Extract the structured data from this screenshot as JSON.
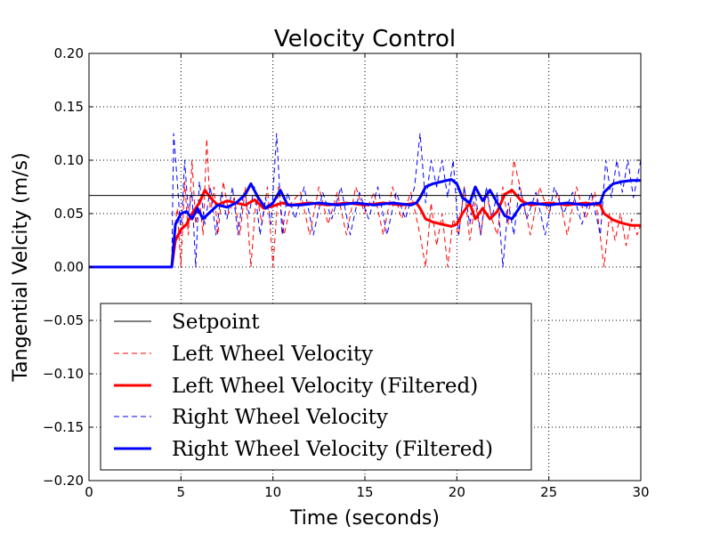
{
  "chart_data": {
    "type": "line",
    "title": "Velocity Control",
    "xlabel": "Time (seconds)",
    "ylabel": "Tangential Velcity (m/s)",
    "xlim": [
      0,
      30
    ],
    "ylim": [
      -0.2,
      0.2
    ],
    "grid": true,
    "legend_position": "lower-left",
    "x_ticks": [
      "0",
      "5",
      "10",
      "15",
      "20",
      "25",
      "30"
    ],
    "y_ticks": [
      "−0.20",
      "−0.15",
      "−0.10",
      "−0.05",
      "0.00",
      "0.05",
      "0.10",
      "0.15",
      "0.20"
    ],
    "series": [
      {
        "name": "Setpoint",
        "color": "#000000",
        "style": "solid-thin",
        "x": [
          0,
          30
        ],
        "y": [
          0.067,
          0.067
        ]
      },
      {
        "name": "Left Wheel Velocity",
        "color": "#ff0000",
        "style": "dashed-thin",
        "x": [
          0,
          4.5,
          4.6,
          4.8,
          5.0,
          5.2,
          5.4,
          5.6,
          5.8,
          6.0,
          6.2,
          6.4,
          6.6,
          6.8,
          7.0,
          7.3,
          7.6,
          7.9,
          8.2,
          8.5,
          8.8,
          9.1,
          9.4,
          9.7,
          10.0,
          10.3,
          10.6,
          11.0,
          11.5,
          12.0,
          12.5,
          13.0,
          13.5,
          14.0,
          14.5,
          15.0,
          15.5,
          16.0,
          16.5,
          17.0,
          17.5,
          18.0,
          18.3,
          18.6,
          18.9,
          19.2,
          19.5,
          19.8,
          20.1,
          20.4,
          20.7,
          21.0,
          21.3,
          21.6,
          21.9,
          22.2,
          22.5,
          22.8,
          23.1,
          23.5,
          24.0,
          24.5,
          25.0,
          25.5,
          26.0,
          26.5,
          27.0,
          27.5,
          28.0,
          28.3,
          28.6,
          28.9,
          29.2,
          29.5,
          29.8,
          30.0
        ],
        "y": [
          0,
          0,
          0.03,
          0.055,
          0.0,
          0.08,
          0.03,
          0.1,
          0.04,
          0.065,
          0.03,
          0.12,
          0.05,
          0.075,
          0.03,
          0.08,
          0.05,
          0.065,
          0.03,
          0.075,
          0.0,
          0.07,
          0.04,
          0.075,
          0.0,
          0.075,
          0.03,
          0.06,
          0.07,
          0.03,
          0.075,
          0.04,
          0.07,
          0.03,
          0.075,
          0.05,
          0.07,
          0.03,
          0.075,
          0.045,
          0.07,
          0.03,
          0.0,
          0.06,
          0.02,
          0.05,
          0.0,
          0.045,
          0.03,
          0.075,
          0.025,
          0.06,
          0.03,
          0.07,
          0.045,
          0.03,
          0.075,
          0.04,
          0.1,
          0.07,
          0.03,
          0.075,
          0.05,
          0.07,
          0.03,
          0.075,
          0.045,
          0.07,
          0.0,
          0.05,
          0.025,
          0.05,
          0.02,
          0.045,
          0.03,
          0.04
        ]
      },
      {
        "name": "Left Wheel Velocity (Filtered)",
        "color": "#ff0000",
        "style": "solid-thick",
        "x": [
          0,
          4.5,
          4.7,
          5.0,
          5.3,
          5.6,
          6.0,
          6.3,
          6.6,
          7.0,
          7.5,
          8.0,
          8.5,
          9.0,
          9.5,
          10.0,
          10.5,
          11.0,
          12.0,
          13.0,
          14.0,
          15.0,
          16.0,
          17.0,
          17.8,
          18.0,
          18.3,
          18.7,
          19.2,
          19.7,
          20.0,
          20.3,
          20.7,
          21.0,
          21.4,
          21.8,
          22.2,
          22.6,
          23.0,
          23.5,
          24.0,
          25.0,
          26.0,
          27.0,
          27.8,
          28.0,
          28.5,
          29.0,
          29.5,
          30.0
        ],
        "y": [
          0,
          0,
          0.025,
          0.035,
          0.04,
          0.05,
          0.06,
          0.072,
          0.065,
          0.058,
          0.062,
          0.06,
          0.058,
          0.063,
          0.055,
          0.057,
          0.06,
          0.058,
          0.06,
          0.058,
          0.06,
          0.058,
          0.06,
          0.058,
          0.06,
          0.055,
          0.045,
          0.042,
          0.04,
          0.038,
          0.04,
          0.05,
          0.06,
          0.045,
          0.055,
          0.045,
          0.052,
          0.068,
          0.072,
          0.062,
          0.058,
          0.06,
          0.058,
          0.06,
          0.058,
          0.05,
          0.044,
          0.041,
          0.039,
          0.039
        ]
      },
      {
        "name": "Right Wheel Velocity",
        "color": "#0000ff",
        "style": "dashed-thin",
        "x": [
          0,
          4.5,
          4.6,
          4.8,
          5.0,
          5.2,
          5.4,
          5.6,
          5.8,
          6.0,
          6.3,
          6.6,
          6.9,
          7.2,
          7.5,
          7.8,
          8.1,
          8.4,
          8.7,
          9.0,
          9.3,
          9.6,
          9.9,
          10.2,
          10.5,
          10.8,
          11.2,
          11.7,
          12.2,
          12.7,
          13.2,
          13.7,
          14.2,
          14.7,
          15.2,
          15.7,
          16.2,
          16.7,
          17.2,
          17.7,
          18.0,
          18.3,
          18.6,
          18.9,
          19.2,
          19.5,
          19.8,
          20.1,
          20.4,
          20.7,
          21.0,
          21.3,
          21.6,
          21.9,
          22.2,
          22.5,
          22.8,
          23.1,
          23.4,
          23.8,
          24.3,
          24.8,
          25.3,
          25.8,
          26.3,
          26.8,
          27.3,
          27.8,
          28.1,
          28.4,
          28.7,
          29.0,
          29.3,
          29.6,
          30.0
        ],
        "y": [
          0,
          0,
          0.125,
          0.08,
          0.03,
          0.1,
          0.05,
          0.07,
          0.0,
          0.08,
          0.04,
          0.075,
          0.03,
          0.07,
          0.045,
          0.075,
          0.03,
          0.07,
          0.05,
          0.075,
          0.03,
          0.065,
          0.04,
          0.125,
          0.03,
          0.07,
          0.045,
          0.075,
          0.03,
          0.07,
          0.045,
          0.075,
          0.03,
          0.07,
          0.045,
          0.075,
          0.03,
          0.07,
          0.045,
          0.075,
          0.125,
          0.06,
          0.1,
          0.075,
          0.1,
          0.065,
          0.1,
          0.03,
          0.075,
          0.04,
          0.07,
          0.03,
          0.075,
          0.045,
          0.07,
          0.0,
          0.06,
          0.03,
          0.075,
          0.045,
          0.07,
          0.03,
          0.075,
          0.05,
          0.07,
          0.04,
          0.07,
          0.03,
          0.1,
          0.065,
          0.1,
          0.07,
          0.1,
          0.065,
          0.1
        ]
      },
      {
        "name": "Right Wheel Velocity (Filtered)",
        "color": "#0000ff",
        "style": "solid-thick",
        "x": [
          0,
          4.5,
          4.7,
          5.0,
          5.3,
          5.6,
          5.9,
          6.2,
          6.5,
          7.0,
          7.5,
          8.0,
          8.5,
          8.8,
          9.2,
          9.6,
          10.0,
          10.4,
          10.8,
          11.5,
          12.5,
          13.5,
          14.5,
          15.5,
          16.5,
          17.5,
          17.8,
          18.0,
          18.3,
          18.7,
          19.2,
          19.7,
          20.0,
          20.3,
          20.7,
          21.0,
          21.4,
          21.8,
          22.2,
          22.6,
          23.0,
          23.5,
          24.0,
          25.0,
          26.0,
          27.0,
          27.8,
          28.0,
          28.5,
          29.0,
          29.5,
          30.0
        ],
        "y": [
          0,
          0,
          0.04,
          0.05,
          0.052,
          0.045,
          0.055,
          0.045,
          0.05,
          0.058,
          0.056,
          0.06,
          0.068,
          0.078,
          0.065,
          0.055,
          0.06,
          0.072,
          0.058,
          0.058,
          0.06,
          0.058,
          0.06,
          0.058,
          0.06,
          0.058,
          0.06,
          0.065,
          0.075,
          0.078,
          0.08,
          0.082,
          0.078,
          0.065,
          0.06,
          0.075,
          0.062,
          0.072,
          0.06,
          0.048,
          0.045,
          0.058,
          0.06,
          0.058,
          0.06,
          0.058,
          0.06,
          0.07,
          0.078,
          0.08,
          0.081,
          0.081
        ]
      }
    ]
  }
}
